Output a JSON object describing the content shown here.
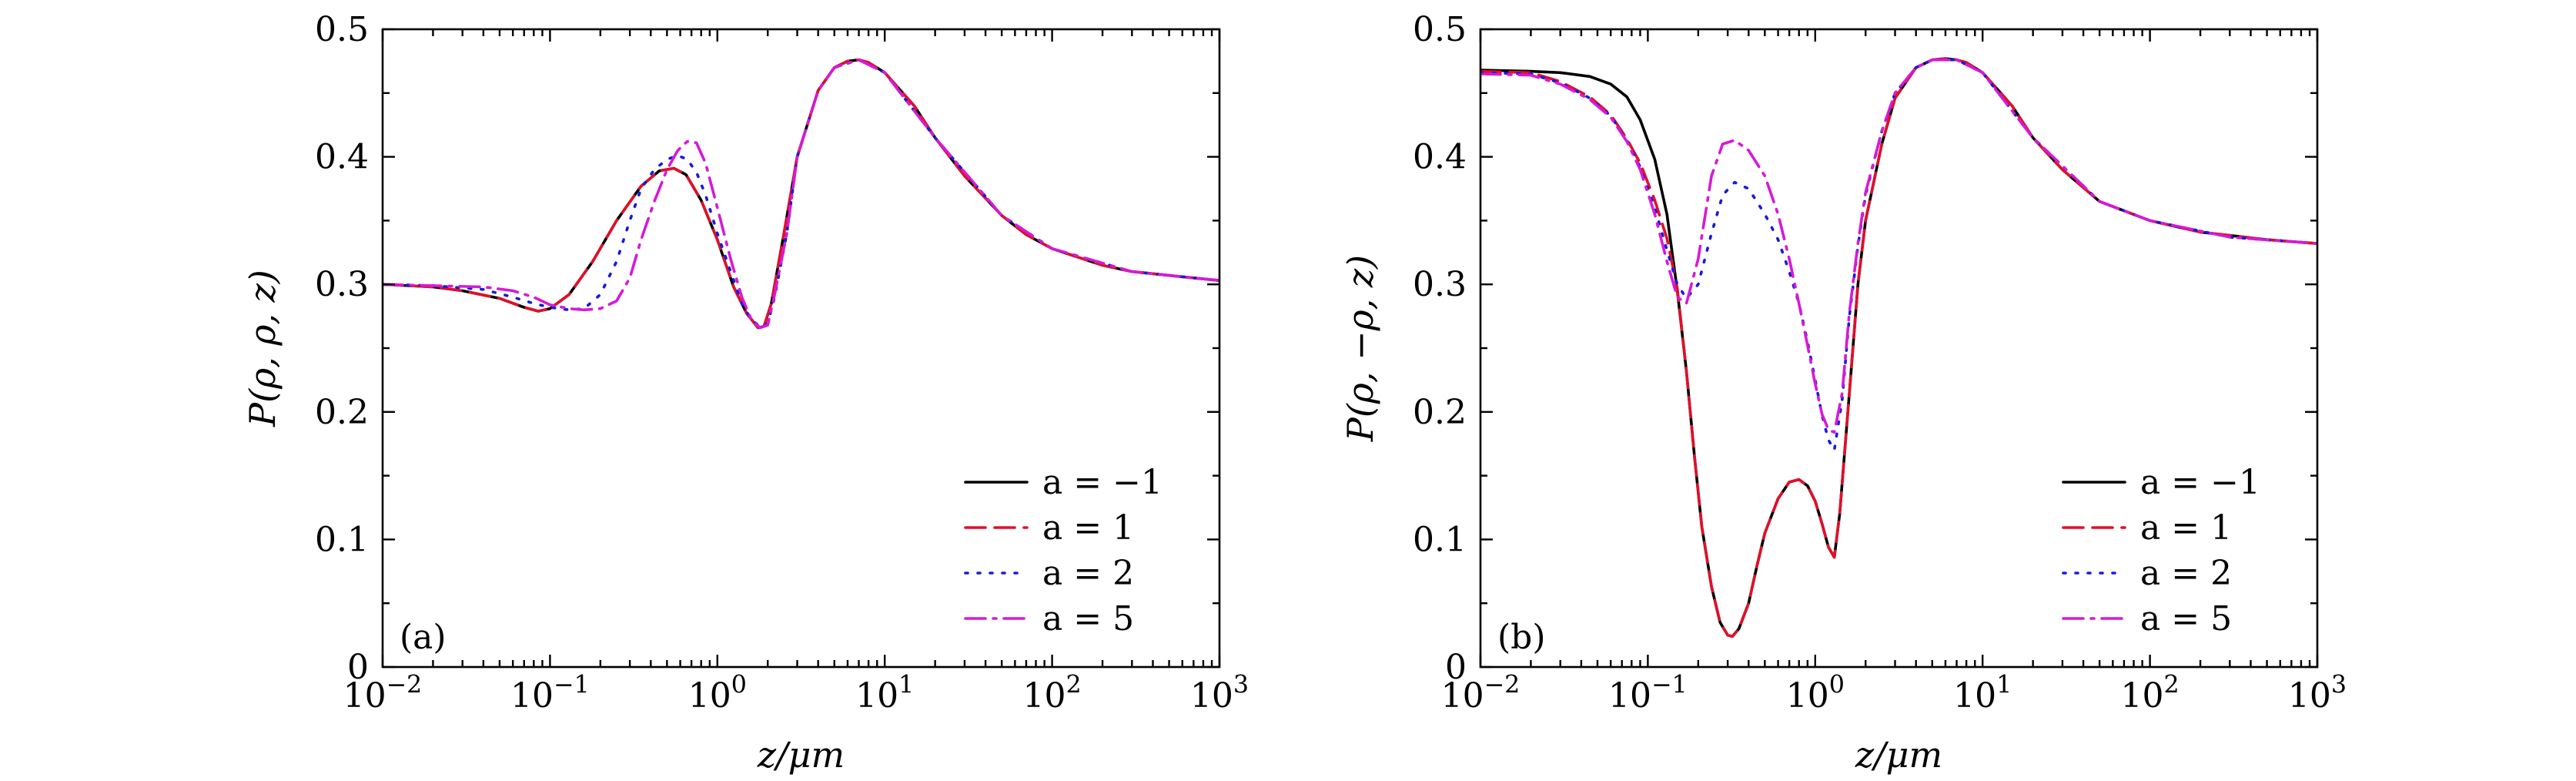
{
  "chart_data": [
    {
      "type": "line",
      "panel_tag": "(a)",
      "xlabel": "z/μm",
      "ylabel": "P(ρ, ρ, z)",
      "x_scale": "log",
      "xlim": [
        0.01,
        1000
      ],
      "ylim": [
        0,
        0.5
      ],
      "x_ticks": [
        "10−2",
        "10−1",
        "100",
        "101",
        "102",
        "103"
      ],
      "y_ticks": [
        "0",
        "0.1",
        "0.2",
        "0.3",
        "0.4",
        "0.5"
      ],
      "grid": false,
      "legend_position": "lower-right",
      "series": [
        {
          "name": "a = −1",
          "color": "#000000",
          "dash": "solid",
          "x": [
            0.01,
            0.02,
            0.03,
            0.05,
            0.07,
            0.085,
            0.1,
            0.13,
            0.18,
            0.25,
            0.35,
            0.45,
            0.55,
            0.65,
            0.8,
            1.0,
            1.25,
            1.5,
            1.75,
            1.9,
            2.1,
            2.5,
            3.0,
            4.0,
            5.0,
            6.0,
            7.0,
            8.0,
            10,
            15,
            20,
            30,
            50,
            70,
            100,
            200,
            300,
            500,
            1000
          ],
          "y": [
            0.3,
            0.298,
            0.295,
            0.289,
            0.282,
            0.279,
            0.281,
            0.292,
            0.318,
            0.35,
            0.377,
            0.389,
            0.391,
            0.386,
            0.366,
            0.335,
            0.298,
            0.277,
            0.266,
            0.267,
            0.285,
            0.34,
            0.4,
            0.452,
            0.47,
            0.475,
            0.476,
            0.474,
            0.466,
            0.44,
            0.415,
            0.385,
            0.354,
            0.339,
            0.328,
            0.315,
            0.31,
            0.307,
            0.303
          ]
        },
        {
          "name": "a = 1",
          "color": "#e0102a",
          "dash": "dashed",
          "x": [
            0.01,
            0.02,
            0.03,
            0.05,
            0.07,
            0.085,
            0.1,
            0.13,
            0.18,
            0.25,
            0.35,
            0.45,
            0.55,
            0.65,
            0.8,
            1.0,
            1.25,
            1.5,
            1.75,
            1.9,
            2.1,
            2.5,
            3.0,
            4.0,
            5.0,
            6.0,
            7.0,
            8.0,
            10,
            15,
            20,
            30,
            50,
            70,
            100,
            200,
            300,
            500,
            1000
          ],
          "y": [
            0.3,
            0.298,
            0.295,
            0.289,
            0.282,
            0.279,
            0.281,
            0.292,
            0.318,
            0.35,
            0.377,
            0.389,
            0.391,
            0.386,
            0.366,
            0.335,
            0.298,
            0.277,
            0.266,
            0.267,
            0.285,
            0.34,
            0.4,
            0.452,
            0.47,
            0.475,
            0.476,
            0.474,
            0.466,
            0.44,
            0.415,
            0.385,
            0.354,
            0.339,
            0.328,
            0.315,
            0.31,
            0.307,
            0.303
          ]
        },
        {
          "name": "a = 2",
          "color": "#1a1adb",
          "dash": "dotted",
          "x": [
            0.01,
            0.02,
            0.04,
            0.06,
            0.08,
            0.1,
            0.13,
            0.16,
            0.2,
            0.25,
            0.3,
            0.35,
            0.42,
            0.5,
            0.58,
            0.66,
            0.75,
            0.85,
            1.0,
            1.2,
            1.4,
            1.6,
            1.8,
            2.0,
            2.2,
            2.6,
            3.0,
            4.0,
            5.0,
            7.0,
            10,
            20,
            50,
            100,
            300,
            1000
          ],
          "y": [
            0.3,
            0.299,
            0.296,
            0.29,
            0.285,
            0.282,
            0.28,
            0.281,
            0.292,
            0.318,
            0.35,
            0.375,
            0.39,
            0.398,
            0.401,
            0.398,
            0.388,
            0.37,
            0.34,
            0.31,
            0.285,
            0.272,
            0.267,
            0.269,
            0.29,
            0.34,
            0.4,
            0.452,
            0.47,
            0.476,
            0.466,
            0.415,
            0.354,
            0.328,
            0.31,
            0.303
          ]
        },
        {
          "name": "a = 5",
          "color": "#d61ad6",
          "dash": "dashdot",
          "x": [
            0.01,
            0.02,
            0.04,
            0.06,
            0.08,
            0.1,
            0.13,
            0.16,
            0.2,
            0.25,
            0.3,
            0.35,
            0.42,
            0.5,
            0.58,
            0.66,
            0.75,
            0.85,
            1.0,
            1.2,
            1.4,
            1.6,
            1.8,
            2.0,
            2.2,
            2.6,
            3.0,
            4.0,
            5.0,
            7.0,
            10,
            20,
            50,
            100,
            300,
            1000
          ],
          "y": [
            0.3,
            0.299,
            0.298,
            0.295,
            0.29,
            0.284,
            0.281,
            0.28,
            0.281,
            0.287,
            0.305,
            0.335,
            0.365,
            0.39,
            0.405,
            0.412,
            0.411,
            0.395,
            0.36,
            0.32,
            0.29,
            0.272,
            0.266,
            0.268,
            0.292,
            0.34,
            0.4,
            0.452,
            0.47,
            0.476,
            0.466,
            0.415,
            0.354,
            0.328,
            0.31,
            0.303
          ]
        }
      ]
    },
    {
      "type": "line",
      "panel_tag": "(b)",
      "xlabel": "z/μm",
      "ylabel": "P(ρ, −ρ, z)",
      "x_scale": "log",
      "xlim": [
        0.01,
        1000
      ],
      "ylim": [
        0,
        0.5
      ],
      "x_ticks": [
        "10−2",
        "10−1",
        "100",
        "101",
        "102",
        "103"
      ],
      "y_ticks": [
        "0",
        "0.1",
        "0.2",
        "0.3",
        "0.4",
        "0.5"
      ],
      "grid": false,
      "legend_position": "lower-right",
      "series": [
        {
          "name": "a = −1",
          "color": "#000000",
          "dash": "solid",
          "x": [
            0.01,
            0.02,
            0.03,
            0.045,
            0.06,
            0.075,
            0.09,
            0.11,
            0.13,
            0.15,
            0.17,
            0.19,
            0.21,
            0.24,
            0.27,
            0.3,
            0.32,
            0.35,
            0.4,
            0.45,
            0.5,
            0.6,
            0.7,
            0.8,
            0.9,
            1.0,
            1.1,
            1.2,
            1.3,
            1.4,
            1.6,
            1.8,
            2.0,
            2.5,
            3.0,
            4.0,
            5.0,
            6.0,
            7.0,
            8.0,
            10,
            15,
            20,
            30,
            50,
            100,
            200,
            500,
            1000
          ],
          "y": [
            0.468,
            0.467,
            0.466,
            0.463,
            0.457,
            0.447,
            0.429,
            0.398,
            0.355,
            0.295,
            0.232,
            0.165,
            0.11,
            0.063,
            0.035,
            0.025,
            0.024,
            0.03,
            0.05,
            0.08,
            0.105,
            0.132,
            0.145,
            0.147,
            0.142,
            0.13,
            0.112,
            0.094,
            0.086,
            0.12,
            0.215,
            0.3,
            0.35,
            0.41,
            0.446,
            0.47,
            0.476,
            0.477,
            0.476,
            0.474,
            0.466,
            0.44,
            0.415,
            0.39,
            0.365,
            0.35,
            0.341,
            0.335,
            0.332
          ]
        },
        {
          "name": "a = 1",
          "color": "#e0102a",
          "dash": "dashed",
          "x": [
            0.01,
            0.02,
            0.03,
            0.045,
            0.06,
            0.075,
            0.09,
            0.11,
            0.13,
            0.15,
            0.17,
            0.19,
            0.21,
            0.24,
            0.27,
            0.3,
            0.32,
            0.35,
            0.4,
            0.45,
            0.5,
            0.6,
            0.7,
            0.8,
            0.9,
            1.0,
            1.1,
            1.2,
            1.3,
            1.4,
            1.6,
            1.8,
            2.0,
            2.5,
            3.0,
            4.0,
            5.0,
            6.0,
            7.0,
            8.0,
            10,
            15,
            20,
            30,
            50,
            100,
            200,
            500,
            1000
          ],
          "y": [
            0.467,
            0.466,
            0.459,
            0.447,
            0.433,
            0.414,
            0.395,
            0.366,
            0.336,
            0.297,
            0.232,
            0.165,
            0.11,
            0.063,
            0.035,
            0.025,
            0.024,
            0.03,
            0.05,
            0.08,
            0.105,
            0.132,
            0.145,
            0.147,
            0.142,
            0.13,
            0.112,
            0.094,
            0.086,
            0.12,
            0.215,
            0.3,
            0.35,
            0.41,
            0.446,
            0.47,
            0.476,
            0.477,
            0.476,
            0.474,
            0.466,
            0.44,
            0.415,
            0.39,
            0.365,
            0.35,
            0.341,
            0.335,
            0.332
          ]
        },
        {
          "name": "a = 2",
          "color": "#1a1adb",
          "dash": "dotted",
          "x": [
            0.01,
            0.02,
            0.03,
            0.045,
            0.06,
            0.075,
            0.09,
            0.11,
            0.13,
            0.15,
            0.17,
            0.2,
            0.24,
            0.28,
            0.33,
            0.4,
            0.5,
            0.6,
            0.7,
            0.8,
            0.9,
            1.0,
            1.1,
            1.2,
            1.3,
            1.45,
            1.6,
            1.8,
            2.0,
            2.5,
            3.0,
            4.0,
            5.0,
            7.0,
            10,
            20,
            50,
            100,
            300,
            1000
          ],
          "y": [
            0.466,
            0.465,
            0.458,
            0.446,
            0.432,
            0.413,
            0.392,
            0.36,
            0.327,
            0.3,
            0.289,
            0.3,
            0.34,
            0.37,
            0.38,
            0.375,
            0.355,
            0.335,
            0.31,
            0.285,
            0.255,
            0.225,
            0.197,
            0.178,
            0.17,
            0.21,
            0.275,
            0.33,
            0.37,
            0.42,
            0.45,
            0.47,
            0.476,
            0.476,
            0.466,
            0.415,
            0.365,
            0.35,
            0.337,
            0.332
          ]
        },
        {
          "name": "a = 5",
          "color": "#d61ad6",
          "dash": "dashdot",
          "x": [
            0.01,
            0.02,
            0.03,
            0.045,
            0.06,
            0.075,
            0.09,
            0.11,
            0.13,
            0.15,
            0.17,
            0.2,
            0.24,
            0.28,
            0.33,
            0.4,
            0.5,
            0.6,
            0.7,
            0.8,
            0.9,
            1.0,
            1.1,
            1.2,
            1.3,
            1.45,
            1.6,
            1.8,
            2.0,
            2.5,
            3.0,
            4.0,
            5.0,
            7.0,
            10,
            20,
            50,
            100,
            300,
            1000
          ],
          "y": [
            0.465,
            0.464,
            0.457,
            0.445,
            0.431,
            0.412,
            0.39,
            0.355,
            0.318,
            0.29,
            0.285,
            0.32,
            0.385,
            0.41,
            0.413,
            0.405,
            0.385,
            0.355,
            0.32,
            0.285,
            0.252,
            0.222,
            0.198,
            0.186,
            0.184,
            0.215,
            0.278,
            0.332,
            0.372,
            0.42,
            0.45,
            0.47,
            0.476,
            0.476,
            0.466,
            0.415,
            0.365,
            0.35,
            0.337,
            0.332
          ]
        }
      ]
    }
  ]
}
